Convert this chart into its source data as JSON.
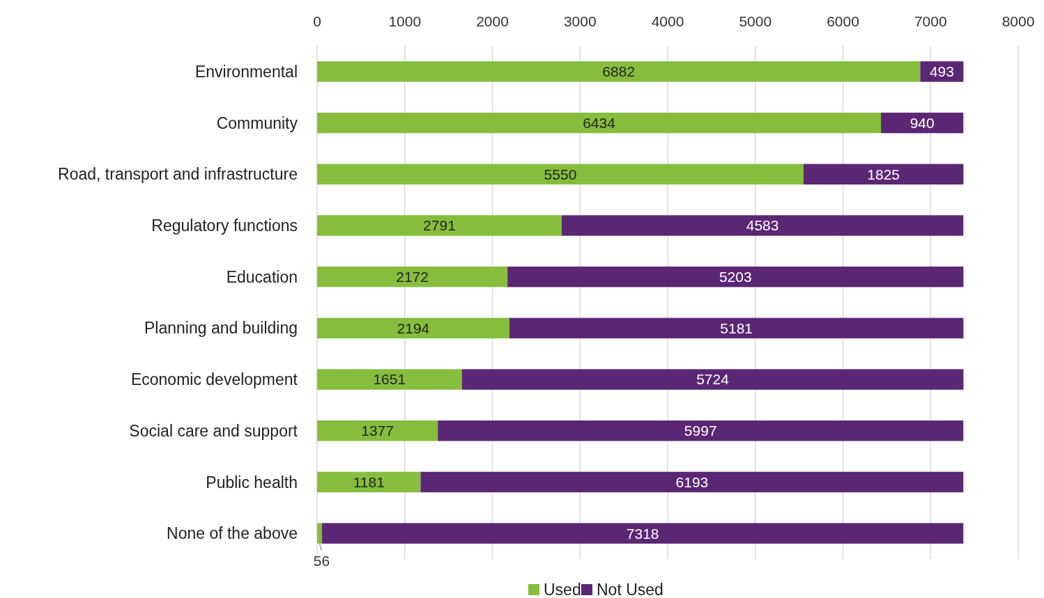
{
  "chart_data": {
    "type": "bar",
    "orientation": "horizontal",
    "stacked": true,
    "categories": [
      "Environmental",
      "Community",
      "Road, transport and infrastructure",
      "Regulatory functions",
      "Education",
      "Planning and building",
      "Economic development",
      "Social care and support",
      "Public health",
      "None of the above"
    ],
    "series": [
      {
        "name": "Used",
        "color": "#86bd3d",
        "values": [
          6882,
          6434,
          5550,
          2791,
          2172,
          2194,
          1651,
          1377,
          1181,
          56
        ]
      },
      {
        "name": "Not Used",
        "color": "#5b2774",
        "values": [
          493,
          940,
          1825,
          4583,
          5203,
          5181,
          5724,
          5997,
          6193,
          7318
        ]
      }
    ],
    "xlim": [
      0,
      8000
    ],
    "xticks": [
      0,
      1000,
      2000,
      3000,
      4000,
      5000,
      6000,
      7000,
      8000
    ],
    "grid": "x",
    "legend": "bottom",
    "data_labels": true
  }
}
